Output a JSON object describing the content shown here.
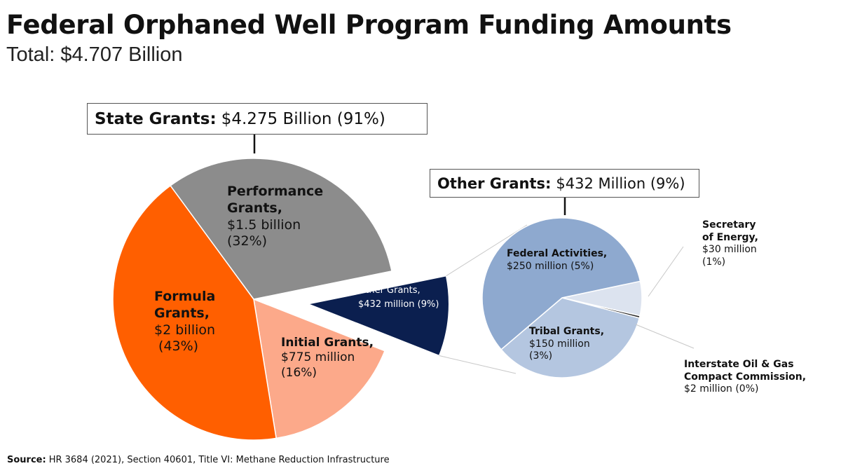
{
  "title": "Federal Orphaned Well Program Funding Amounts",
  "subtitle": "Total: $4.707 Billion",
  "source": {
    "label": "Source:",
    "text": "HR 3684 (2021), Section 40601, Title VI: Methane Reduction Infrastructure"
  },
  "chart_data": [
    {
      "type": "pie",
      "title_label": "State Grants:",
      "title_value": "$4.275 Billion (91%)",
      "slices": [
        {
          "name": "Other Grants",
          "value": 432,
          "unit": "million",
          "percent": 9,
          "color": "#0B1F4F",
          "exploded": true,
          "label_lines": [
            "Other Grants,",
            "$432 million (9%)"
          ]
        },
        {
          "name": "Initial Grants",
          "value": 775,
          "unit": "million",
          "percent": 16,
          "color": "#FCA98A",
          "label_lines": [
            "Initial Grants,",
            "$775 million",
            "(16%)"
          ]
        },
        {
          "name": "Formula Grants",
          "value": 2000,
          "unit": "million",
          "percent": 43,
          "color": "#FF5F00",
          "label_lines": [
            "Formula",
            "Grants,",
            "$2 billion",
            " (43%)"
          ]
        },
        {
          "name": "Performance Grants",
          "value": 1500,
          "unit": "million",
          "percent": 32,
          "color": "#8C8C8C",
          "label_lines": [
            "Performance",
            "Grants,",
            "$1.5 billion",
            "(32%)"
          ]
        }
      ]
    },
    {
      "type": "pie",
      "title_label": "Other Grants:",
      "title_value": "$432 Million (9%)",
      "slices": [
        {
          "name": "Secretary of Energy",
          "value": 30,
          "unit": "million",
          "percent": 1,
          "color": "#DCE3EF",
          "label_lines": [
            "Secretary",
            "of Energy,",
            "$30 million",
            "(1%)"
          ]
        },
        {
          "name": "Interstate Oil & Gas Compact Commission",
          "value": 2,
          "unit": "million",
          "percent": 0,
          "color": "#2A2A2A",
          "label_lines": [
            "Interstate Oil & Gas",
            "Compact Commission,",
            "$2 million (0%)"
          ]
        },
        {
          "name": "Tribal Grants",
          "value": 150,
          "unit": "million",
          "percent": 3,
          "color": "#B4C6E0",
          "label_lines": [
            "Tribal Grants,",
            "$150 million",
            "(3%)"
          ]
        },
        {
          "name": "Federal Activities",
          "value": 250,
          "unit": "million",
          "percent": 5,
          "color": "#8EA9CF",
          "label_lines": [
            "Federal Activities,",
            "$250 million (5%)"
          ]
        }
      ]
    }
  ]
}
